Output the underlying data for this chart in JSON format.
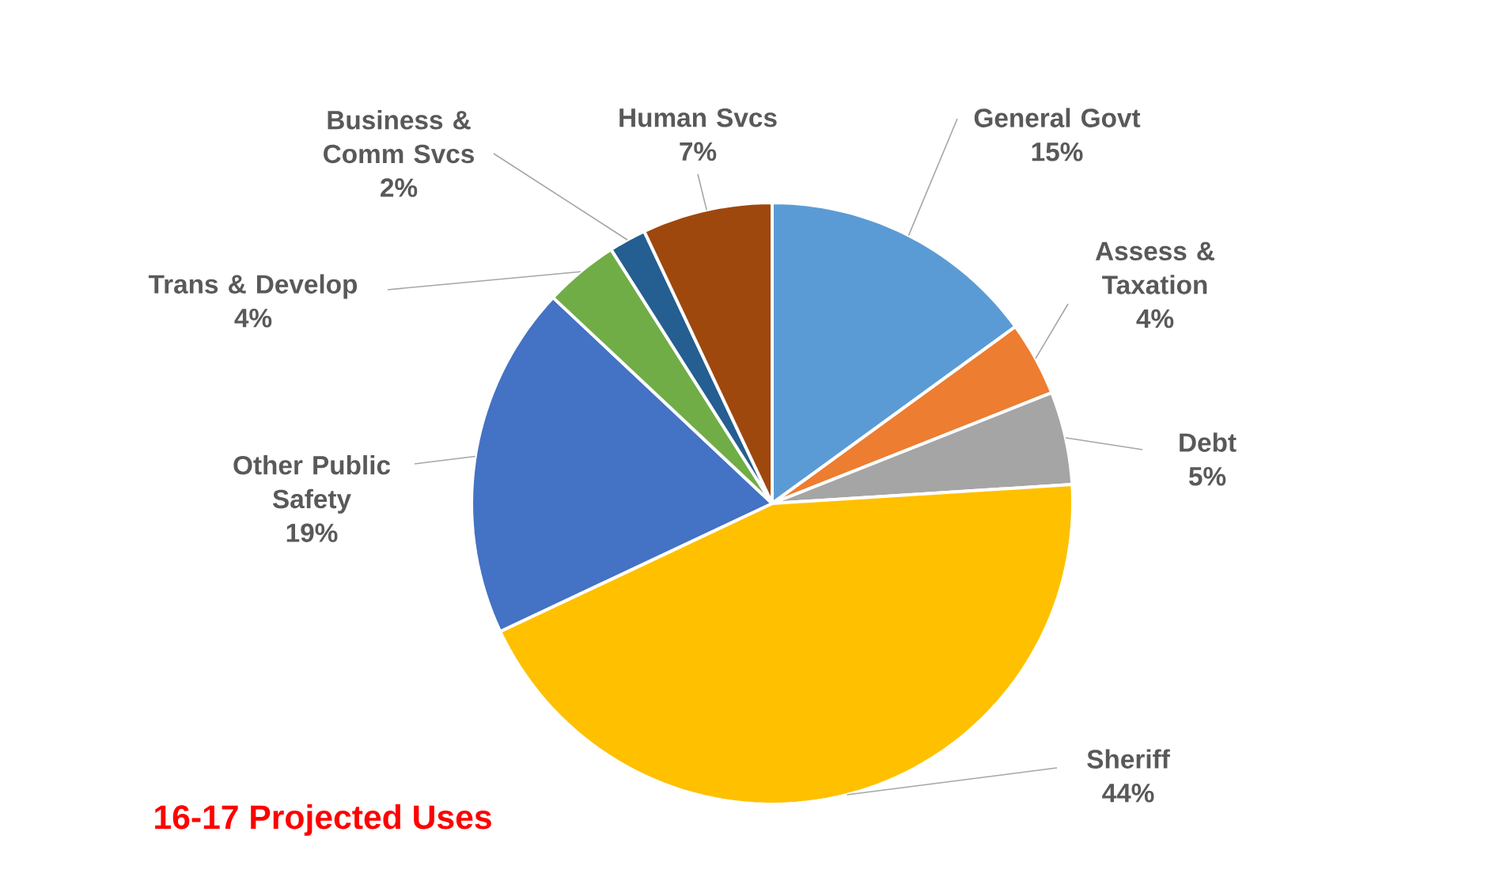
{
  "chart_data": {
    "type": "pie",
    "title": "16-17 Projected Uses",
    "categories": [
      "General Govt",
      "Assess & Taxation",
      "Debt",
      "Sheriff",
      "Other Public Safety",
      "Trans & Develop",
      "Business & Comm Svcs",
      "Human Svcs"
    ],
    "values": [
      15,
      4,
      5,
      44,
      19,
      4,
      2,
      7
    ],
    "value_labels": [
      "15%",
      "4%",
      "5%",
      "44%",
      "19%",
      "4%",
      "2%",
      "7%"
    ],
    "colors": [
      "#5b9bd5",
      "#ed7d31",
      "#a5a5a5",
      "#ffc000",
      "#4472c4",
      "#70ad47",
      "#255e91",
      "#9e480e"
    ]
  }
}
